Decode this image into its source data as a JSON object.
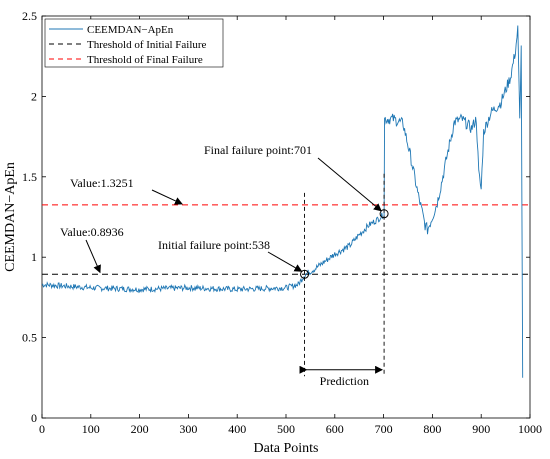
{
  "chart_data": {
    "type": "line",
    "xlabel": "Data Points",
    "ylabel": "CEEMDAN−ApEn",
    "xlim": [
      0,
      1000
    ],
    "ylim": [
      0,
      2.5
    ],
    "xticks": [
      0,
      100,
      200,
      300,
      400,
      500,
      600,
      700,
      800,
      900,
      1000
    ],
    "yticks": [
      0,
      0.5,
      1,
      1.5,
      2,
      2.5
    ],
    "ytick_labels": [
      "0",
      "0.5",
      "1",
      "1.5",
      "2",
      "2.5"
    ],
    "grid": false,
    "legend_position": "top-left",
    "series": [
      {
        "name": "CEEMDAN−ApEn",
        "color": "#1f77b4",
        "anchors": [
          [
            0,
            0.83
          ],
          [
            50,
            0.82
          ],
          [
            100,
            0.81
          ],
          [
            200,
            0.8
          ],
          [
            300,
            0.81
          ],
          [
            400,
            0.8
          ],
          [
            500,
            0.81
          ],
          [
            525,
            0.83
          ],
          [
            538,
            0.89
          ],
          [
            560,
            0.93
          ],
          [
            600,
            1.02
          ],
          [
            630,
            1.07
          ],
          [
            650,
            1.14
          ],
          [
            670,
            1.2
          ],
          [
            690,
            1.24
          ],
          [
            701,
            1.27
          ],
          [
            702,
            1.86
          ],
          [
            720,
            1.86
          ],
          [
            740,
            1.83
          ],
          [
            755,
            1.63
          ],
          [
            770,
            1.4
          ],
          [
            785,
            1.2
          ],
          [
            790,
            1.17
          ],
          [
            800,
            1.25
          ],
          [
            810,
            1.34
          ],
          [
            820,
            1.48
          ],
          [
            832,
            1.66
          ],
          [
            845,
            1.84
          ],
          [
            860,
            1.86
          ],
          [
            880,
            1.8
          ],
          [
            890,
            1.86
          ],
          [
            895,
            1.52
          ],
          [
            900,
            1.42
          ],
          [
            905,
            1.78
          ],
          [
            920,
            1.9
          ],
          [
            940,
            1.96
          ],
          [
            960,
            2.12
          ],
          [
            970,
            2.28
          ],
          [
            975,
            2.42
          ],
          [
            979,
            1.85
          ],
          [
            982,
            2.3
          ],
          [
            985,
            0.25
          ]
        ]
      }
    ],
    "thresholds": [
      {
        "name": "Threshold of Initial Failure",
        "value": 0.8936,
        "color": "#000000"
      },
      {
        "name": "Threshold of Final Failure",
        "value": 1.3251,
        "color": "#ff0000"
      }
    ],
    "annotations": {
      "initial_value_label": "Value:0.8936",
      "final_value_label": "Value:1.3251",
      "initial_point_label": "Initial failure point:538",
      "final_point_label": "Final failure point:701",
      "prediction_label": "Prediction",
      "initial_point": [
        538,
        0.8936
      ],
      "final_point": [
        701,
        1.27
      ]
    }
  }
}
